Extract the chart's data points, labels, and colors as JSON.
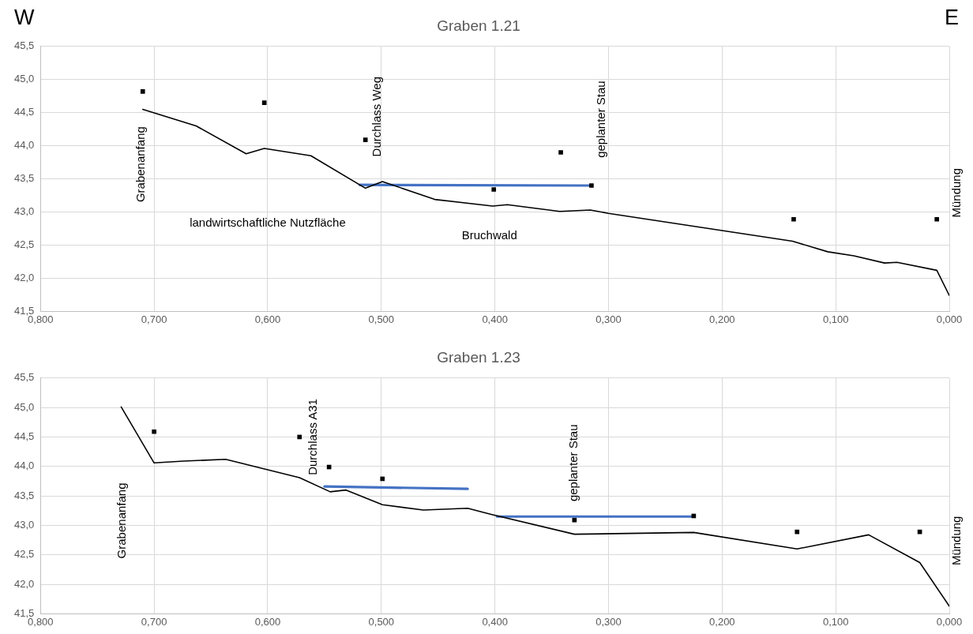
{
  "chart_data": [
    {
      "type": "line",
      "title": "Graben 1.21",
      "xlim": [
        0.8,
        0
      ],
      "xticks": [
        {
          "value": 0.8,
          "label": "0,800"
        },
        {
          "value": 0.7,
          "label": "0,700"
        },
        {
          "value": 0.6,
          "label": "0,600"
        },
        {
          "value": 0.5,
          "label": "0,500"
        },
        {
          "value": 0.4,
          "label": "0,400"
        },
        {
          "value": 0.3,
          "label": "0,300"
        },
        {
          "value": 0.2,
          "label": "0,200"
        },
        {
          "value": 0.1,
          "label": "0,100"
        },
        {
          "value": 0,
          "label": "0,000"
        }
      ],
      "ylim": [
        41.5,
        45.5
      ],
      "yticks": [
        {
          "value": 41.5,
          "label": "41,5"
        },
        {
          "value": 42,
          "label": "42,0"
        },
        {
          "value": 42.5,
          "label": "42,5"
        },
        {
          "value": 43,
          "label": "43,0"
        },
        {
          "value": 43.5,
          "label": "43,5"
        },
        {
          "value": 44,
          "label": "44,0"
        },
        {
          "value": 44.5,
          "label": "44,5"
        },
        {
          "value": 45,
          "label": "45,0"
        },
        {
          "value": 45.5,
          "label": "45,5"
        }
      ],
      "grid": true,
      "series": [
        {
          "type": "line",
          "color": "#000000",
          "marker": "none",
          "x": [
            0.71,
            0.663,
            0.619,
            0.603,
            0.562,
            0.514,
            0.499,
            0.453,
            0.402,
            0.389,
            0.343,
            0.316,
            0.3,
            0.138,
            0.107,
            0.084,
            0.057,
            0.046,
            0.011,
            0.0
          ],
          "values": [
            44.55,
            44.3,
            43.88,
            43.96,
            43.85,
            43.36,
            43.46,
            43.19,
            43.09,
            43.11,
            43.01,
            43.03,
            42.98,
            42.56,
            42.4,
            42.34,
            42.23,
            42.24,
            42.12,
            41.74
          ]
        },
        {
          "type": "line",
          "color": "#4472c4",
          "marker": "none",
          "x": [
            0.519,
            0.315
          ],
          "values": [
            43.41,
            43.4
          ]
        },
        {
          "type": "scatter",
          "color": "#000000",
          "marker": "square",
          "x": [
            0.71,
            0.603,
            0.514,
            0.401,
            0.342,
            0.315,
            0.137,
            0.011
          ],
          "values": [
            44.82,
            44.65,
            44.09,
            43.34,
            43.9,
            43.4,
            42.89,
            42.89
          ]
        }
      ],
      "annotations": [
        "W",
        "E",
        "Grabenanfang",
        "Durchlass Weg",
        "geplanter Stau",
        "Mündung",
        "landwirtschaftliche Nutzfläche",
        "Bruchwald"
      ]
    },
    {
      "type": "line",
      "title": "Graben 1.23",
      "xlim": [
        0.8,
        0
      ],
      "xticks": [
        {
          "value": 0.8,
          "label": "0,800"
        },
        {
          "value": 0.7,
          "label": "0,700"
        },
        {
          "value": 0.6,
          "label": "0,600"
        },
        {
          "value": 0.5,
          "label": "0,500"
        },
        {
          "value": 0.4,
          "label": "0,400"
        },
        {
          "value": 0.3,
          "label": "0,300"
        },
        {
          "value": 0.2,
          "label": "0,200"
        },
        {
          "value": 0.1,
          "label": "0,100"
        },
        {
          "value": 0,
          "label": "0,000"
        }
      ],
      "ylim": [
        41.5,
        45.5
      ],
      "yticks": [
        {
          "value": 41.5,
          "label": "41,5"
        },
        {
          "value": 42,
          "label": "42,0"
        },
        {
          "value": 42.5,
          "label": "42,5"
        },
        {
          "value": 43,
          "label": "43,0"
        },
        {
          "value": 43.5,
          "label": "43,5"
        },
        {
          "value": 44,
          "label": "44,0"
        },
        {
          "value": 44.5,
          "label": "44,5"
        },
        {
          "value": 45,
          "label": "45,0"
        },
        {
          "value": 45.5,
          "label": "45,5"
        }
      ],
      "grid": true,
      "series": [
        {
          "type": "line",
          "color": "#000000",
          "marker": "none",
          "x": [
            0.729,
            0.7,
            0.674,
            0.637,
            0.572,
            0.545,
            0.531,
            0.499,
            0.463,
            0.424,
            0.404,
            0.33,
            0.225,
            0.134,
            0.071,
            0.026,
            0.0
          ],
          "values": [
            45.01,
            44.06,
            44.09,
            44.12,
            43.81,
            43.57,
            43.6,
            43.35,
            43.26,
            43.29,
            43.19,
            42.85,
            42.88,
            42.6,
            42.84,
            42.37,
            41.63
          ]
        },
        {
          "type": "line",
          "color": "#4472c4",
          "marker": "none",
          "x": [
            0.55,
            0.424
          ],
          "values": [
            43.66,
            43.62
          ]
        },
        {
          "type": "line",
          "color": "#4472c4",
          "marker": "none",
          "x": [
            0.398,
            0.225
          ],
          "values": [
            43.15,
            43.15
          ]
        },
        {
          "type": "scatter",
          "color": "#000000",
          "marker": "square",
          "x": [
            0.7,
            0.572,
            0.546,
            0.499,
            0.33,
            0.225,
            0.134,
            0.026
          ],
          "values": [
            44.59,
            44.5,
            43.99,
            43.79,
            43.09,
            43.16,
            42.89,
            42.89
          ]
        }
      ],
      "annotations": [
        "Grabenanfang",
        "Durchlass A31",
        "geplanter Stau",
        "Mündung"
      ]
    }
  ]
}
